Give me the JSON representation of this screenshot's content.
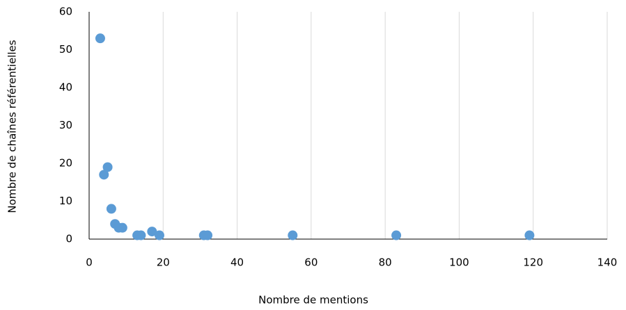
{
  "chart_data": {
    "type": "scatter",
    "x_label": "Nombre de mentions",
    "y_label": "Nombre de chaînes référentielles",
    "series": [
      {
        "color": "#5b9bd5",
        "x": [
          3,
          4,
          5,
          6,
          7,
          8,
          9,
          13,
          14,
          17,
          19,
          31,
          32,
          55,
          83,
          119
        ],
        "values": [
          53,
          17,
          19,
          8,
          4,
          3,
          3,
          1,
          1,
          2,
          1,
          1,
          1,
          1,
          1,
          1
        ]
      }
    ],
    "xlim": [
      0,
      140
    ],
    "xticks": [
      0,
      20,
      40,
      60,
      80,
      100,
      120,
      140
    ],
    "ylim": [
      0,
      60
    ],
    "yticks": [
      0,
      10,
      20,
      30,
      40,
      50,
      60
    ],
    "grid": "x"
  }
}
